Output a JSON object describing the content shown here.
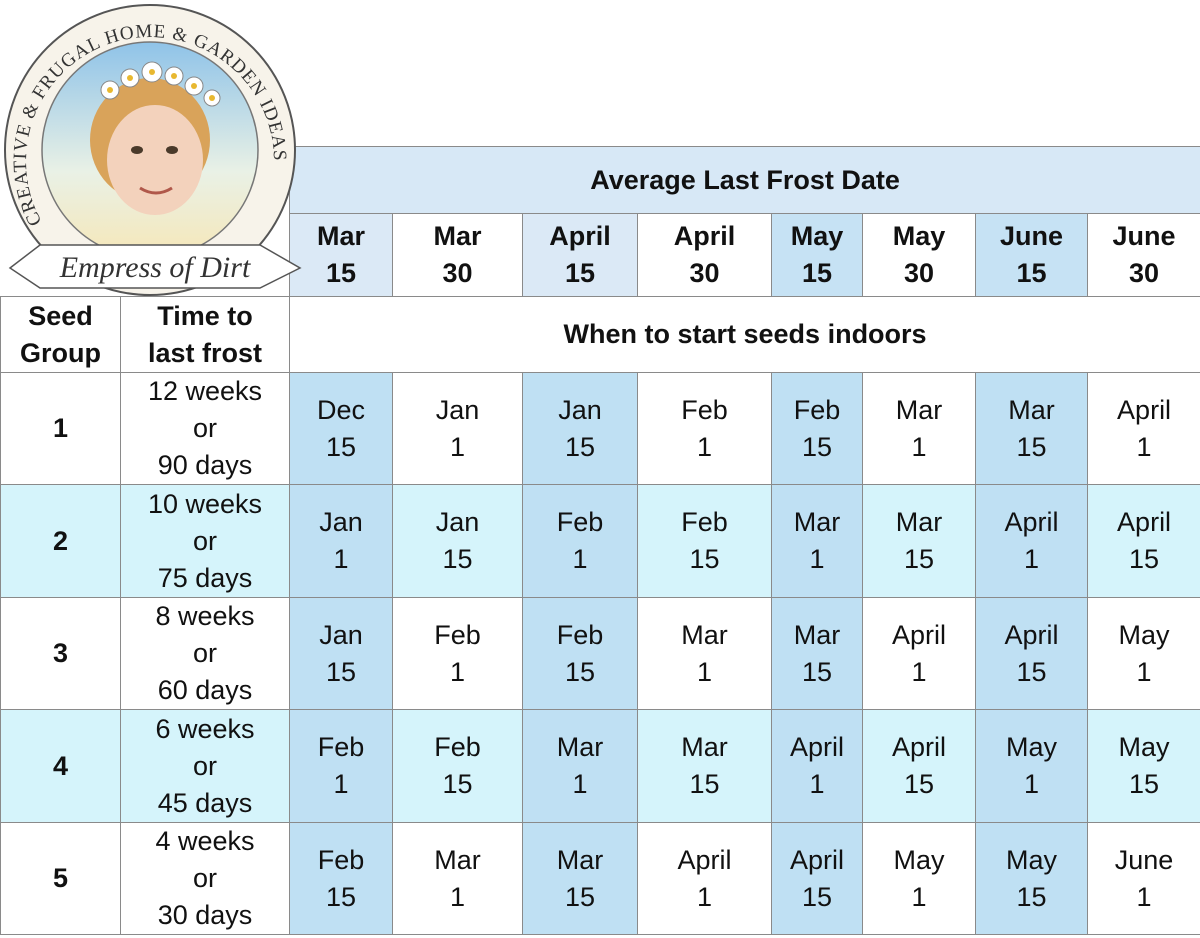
{
  "logo": {
    "arc_text": "CREATIVE & FRUGAL HOME & GARDEN IDEAS",
    "banner": "Empress of Dirt"
  },
  "table": {
    "title": "Average Last Frost Date",
    "subtitle": "When to start seeds indoors",
    "headers": [
      "Seed\nGroup",
      "Time to\nlast frost"
    ],
    "frost_dates": [
      "Mar\n15",
      "Mar\n30",
      "April\n15",
      "April\n30",
      "May\n15",
      "May\n30",
      "June\n15",
      "June\n30"
    ],
    "rows": [
      {
        "group": "1",
        "time": "12 weeks\nor\n90 days",
        "dates": [
          "Dec\n15",
          "Jan\n1",
          "Jan\n15",
          "Feb\n1",
          "Feb\n15",
          "Mar\n1",
          "Mar\n15",
          "April\n1"
        ]
      },
      {
        "group": "2",
        "time": "10 weeks\nor\n75 days",
        "dates": [
          "Jan\n1",
          "Jan\n15",
          "Feb\n1",
          "Feb\n15",
          "Mar\n1",
          "Mar\n15",
          "April\n1",
          "April\n15"
        ]
      },
      {
        "group": "3",
        "time": "8 weeks\nor\n60 days",
        "dates": [
          "Jan\n15",
          "Feb\n1",
          "Feb\n15",
          "Mar\n1",
          "Mar\n15",
          "April\n1",
          "April\n15",
          "May\n1"
        ]
      },
      {
        "group": "4",
        "time": "6 weeks\nor\n45 days",
        "dates": [
          "Feb\n1",
          "Feb\n15",
          "Mar\n1",
          "Mar\n15",
          "April\n1",
          "April\n15",
          "May\n1",
          "May\n15"
        ]
      },
      {
        "group": "5",
        "time": "4 weeks\nor\n30 days",
        "dates": [
          "Feb\n15",
          "Mar\n1",
          "Mar\n15",
          "April\n1",
          "April\n15",
          "May\n1",
          "May\n15",
          "June\n1"
        ]
      }
    ]
  }
}
